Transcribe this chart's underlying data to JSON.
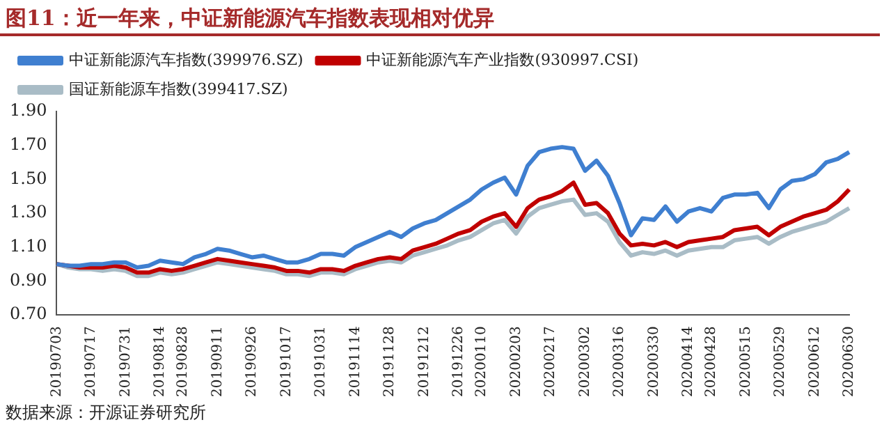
{
  "chart_data": {
    "type": "line",
    "title": "图11：近一年来，中证新能源汽车指数表现相对优异",
    "categories": [
      "20190703",
      null,
      null,
      "20190717",
      null,
      null,
      "20190731",
      null,
      null,
      "20190814",
      null,
      "20190828",
      null,
      null,
      "20190911",
      null,
      null,
      "20190926",
      null,
      null,
      "20191017",
      null,
      null,
      "20191031",
      null,
      null,
      "20191114",
      null,
      null,
      "20191128",
      null,
      null,
      "20191212",
      null,
      null,
      "20191226",
      null,
      "20200110",
      null,
      null,
      "20200203",
      null,
      null,
      "20200217",
      null,
      null,
      "20200302",
      null,
      null,
      "20200316",
      null,
      null,
      "20200330",
      null,
      null,
      "20200414",
      null,
      "20200428",
      null,
      null,
      "20200515",
      null,
      null,
      "20200529",
      null,
      null,
      "20200612",
      null,
      null,
      "20200630"
    ],
    "series": [
      {
        "name": "中证新能源汽车指数(399976.SZ)",
        "color": "#3f7fd0",
        "values": [
          1.0,
          0.99,
          0.99,
          1.0,
          1.0,
          1.01,
          1.01,
          0.98,
          0.99,
          1.02,
          1.01,
          1.0,
          1.04,
          1.06,
          1.09,
          1.08,
          1.06,
          1.04,
          1.05,
          1.03,
          1.01,
          1.01,
          1.03,
          1.06,
          1.06,
          1.05,
          1.1,
          1.13,
          1.16,
          1.19,
          1.16,
          1.21,
          1.24,
          1.26,
          1.3,
          1.34,
          1.38,
          1.44,
          1.48,
          1.51,
          1.41,
          1.58,
          1.66,
          1.68,
          1.69,
          1.68,
          1.55,
          1.61,
          1.52,
          1.36,
          1.17,
          1.27,
          1.26,
          1.34,
          1.25,
          1.31,
          1.33,
          1.31,
          1.39,
          1.41,
          1.41,
          1.42,
          1.33,
          1.44,
          1.49,
          1.5,
          1.53,
          1.6,
          1.62,
          1.66
        ]
      },
      {
        "name": "中证新能源汽车产业指数(930997.CSI)",
        "color": "#c00000",
        "values": [
          1.0,
          0.99,
          0.98,
          0.98,
          0.98,
          0.99,
          0.98,
          0.95,
          0.95,
          0.97,
          0.96,
          0.97,
          0.99,
          1.01,
          1.03,
          1.02,
          1.01,
          1.0,
          0.99,
          0.98,
          0.96,
          0.96,
          0.95,
          0.97,
          0.97,
          0.96,
          0.99,
          1.01,
          1.03,
          1.04,
          1.03,
          1.08,
          1.1,
          1.12,
          1.15,
          1.18,
          1.2,
          1.25,
          1.28,
          1.3,
          1.22,
          1.33,
          1.38,
          1.4,
          1.43,
          1.48,
          1.35,
          1.36,
          1.3,
          1.18,
          1.11,
          1.12,
          1.11,
          1.13,
          1.1,
          1.13,
          1.14,
          1.15,
          1.16,
          1.2,
          1.21,
          1.22,
          1.17,
          1.22,
          1.25,
          1.28,
          1.3,
          1.32,
          1.37,
          1.44
        ]
      },
      {
        "name": "国证新能源车指数(399417.SZ)",
        "color": "#a9bcc6",
        "values": [
          1.0,
          0.98,
          0.97,
          0.97,
          0.96,
          0.97,
          0.96,
          0.93,
          0.93,
          0.95,
          0.94,
          0.95,
          0.97,
          0.99,
          1.01,
          1.0,
          0.99,
          0.98,
          0.97,
          0.96,
          0.94,
          0.94,
          0.93,
          0.95,
          0.95,
          0.94,
          0.97,
          0.99,
          1.01,
          1.02,
          1.01,
          1.05,
          1.07,
          1.09,
          1.11,
          1.14,
          1.16,
          1.2,
          1.24,
          1.26,
          1.18,
          1.28,
          1.33,
          1.35,
          1.37,
          1.38,
          1.29,
          1.3,
          1.25,
          1.13,
          1.05,
          1.07,
          1.06,
          1.08,
          1.05,
          1.08,
          1.09,
          1.1,
          1.1,
          1.14,
          1.15,
          1.16,
          1.12,
          1.16,
          1.19,
          1.21,
          1.23,
          1.25,
          1.29,
          1.33
        ]
      }
    ],
    "ylim": [
      0.7,
      1.9
    ],
    "yticks": [
      {
        "value": 0.7,
        "label": "0.70"
      },
      {
        "value": 0.9,
        "label": "0.90"
      },
      {
        "value": 1.1,
        "label": "1.10"
      },
      {
        "value": 1.3,
        "label": "1.30"
      },
      {
        "value": 1.5,
        "label": "1.50"
      },
      {
        "value": 1.7,
        "label": "1.70"
      },
      {
        "value": 1.9,
        "label": "1.90"
      }
    ],
    "grid": false,
    "legend": "top",
    "marker": "none",
    "line_style": "solid",
    "annotations": [
      "数据来源：开源证券研究所"
    ]
  }
}
